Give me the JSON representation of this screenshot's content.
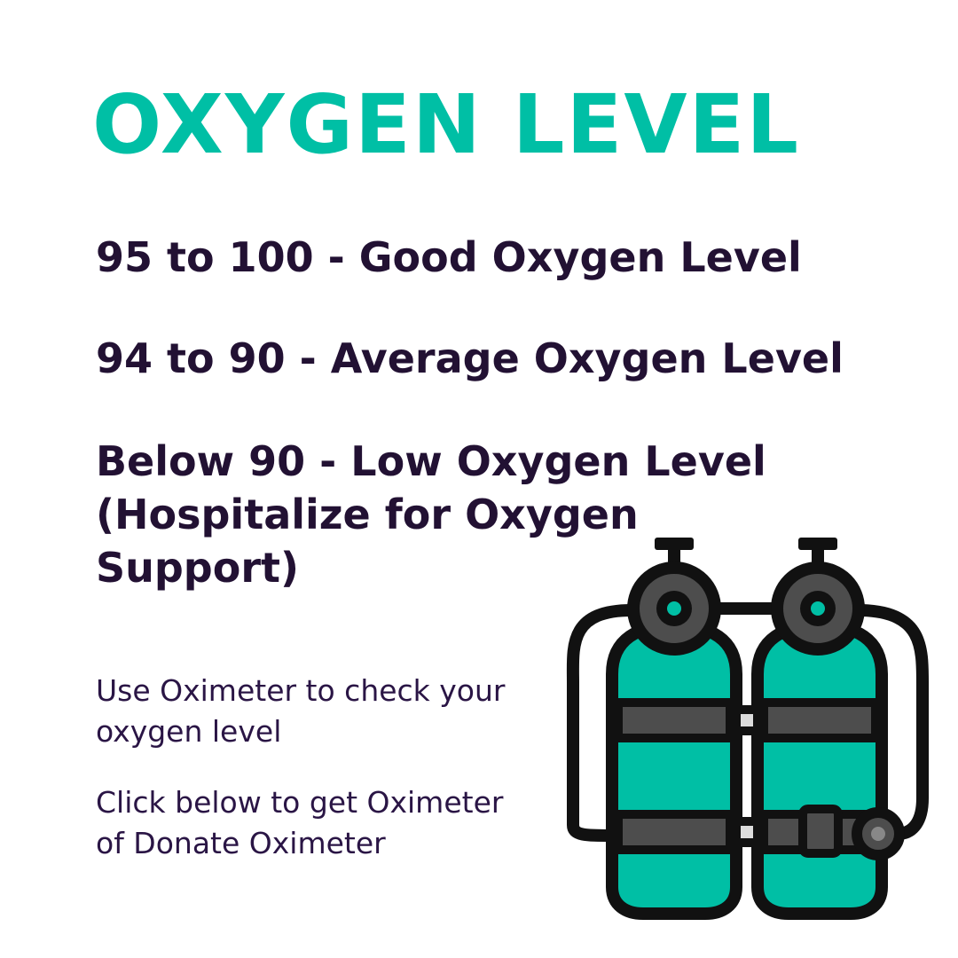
{
  "title": "OXYGEN LEVEL",
  "levels": [
    {
      "text": "95 to 100 - Good Oxygen Level"
    },
    {
      "text": "94 to 90 - Average Oxygen Level"
    },
    {
      "line1": "Below 90 - Low Oxygen Level",
      "line2": "(Hospitalize for Oxygen",
      "line3": "Support)"
    }
  ],
  "notes": {
    "check_line1": "Use Oximeter to check your",
    "check_line2": "oxygen level",
    "click_line1": "Click below to get Oximeter",
    "click_line2": "of Donate Oximeter"
  },
  "illustration": {
    "icon": "oxygen-tanks-icon",
    "colors": {
      "tank": "#00bfa5",
      "outline": "#111111",
      "band": "#4d4d4d",
      "valve_light": "#666666"
    }
  },
  "colors": {
    "title": "#00bfa5",
    "text": "#221133",
    "background": "#ffffff"
  }
}
